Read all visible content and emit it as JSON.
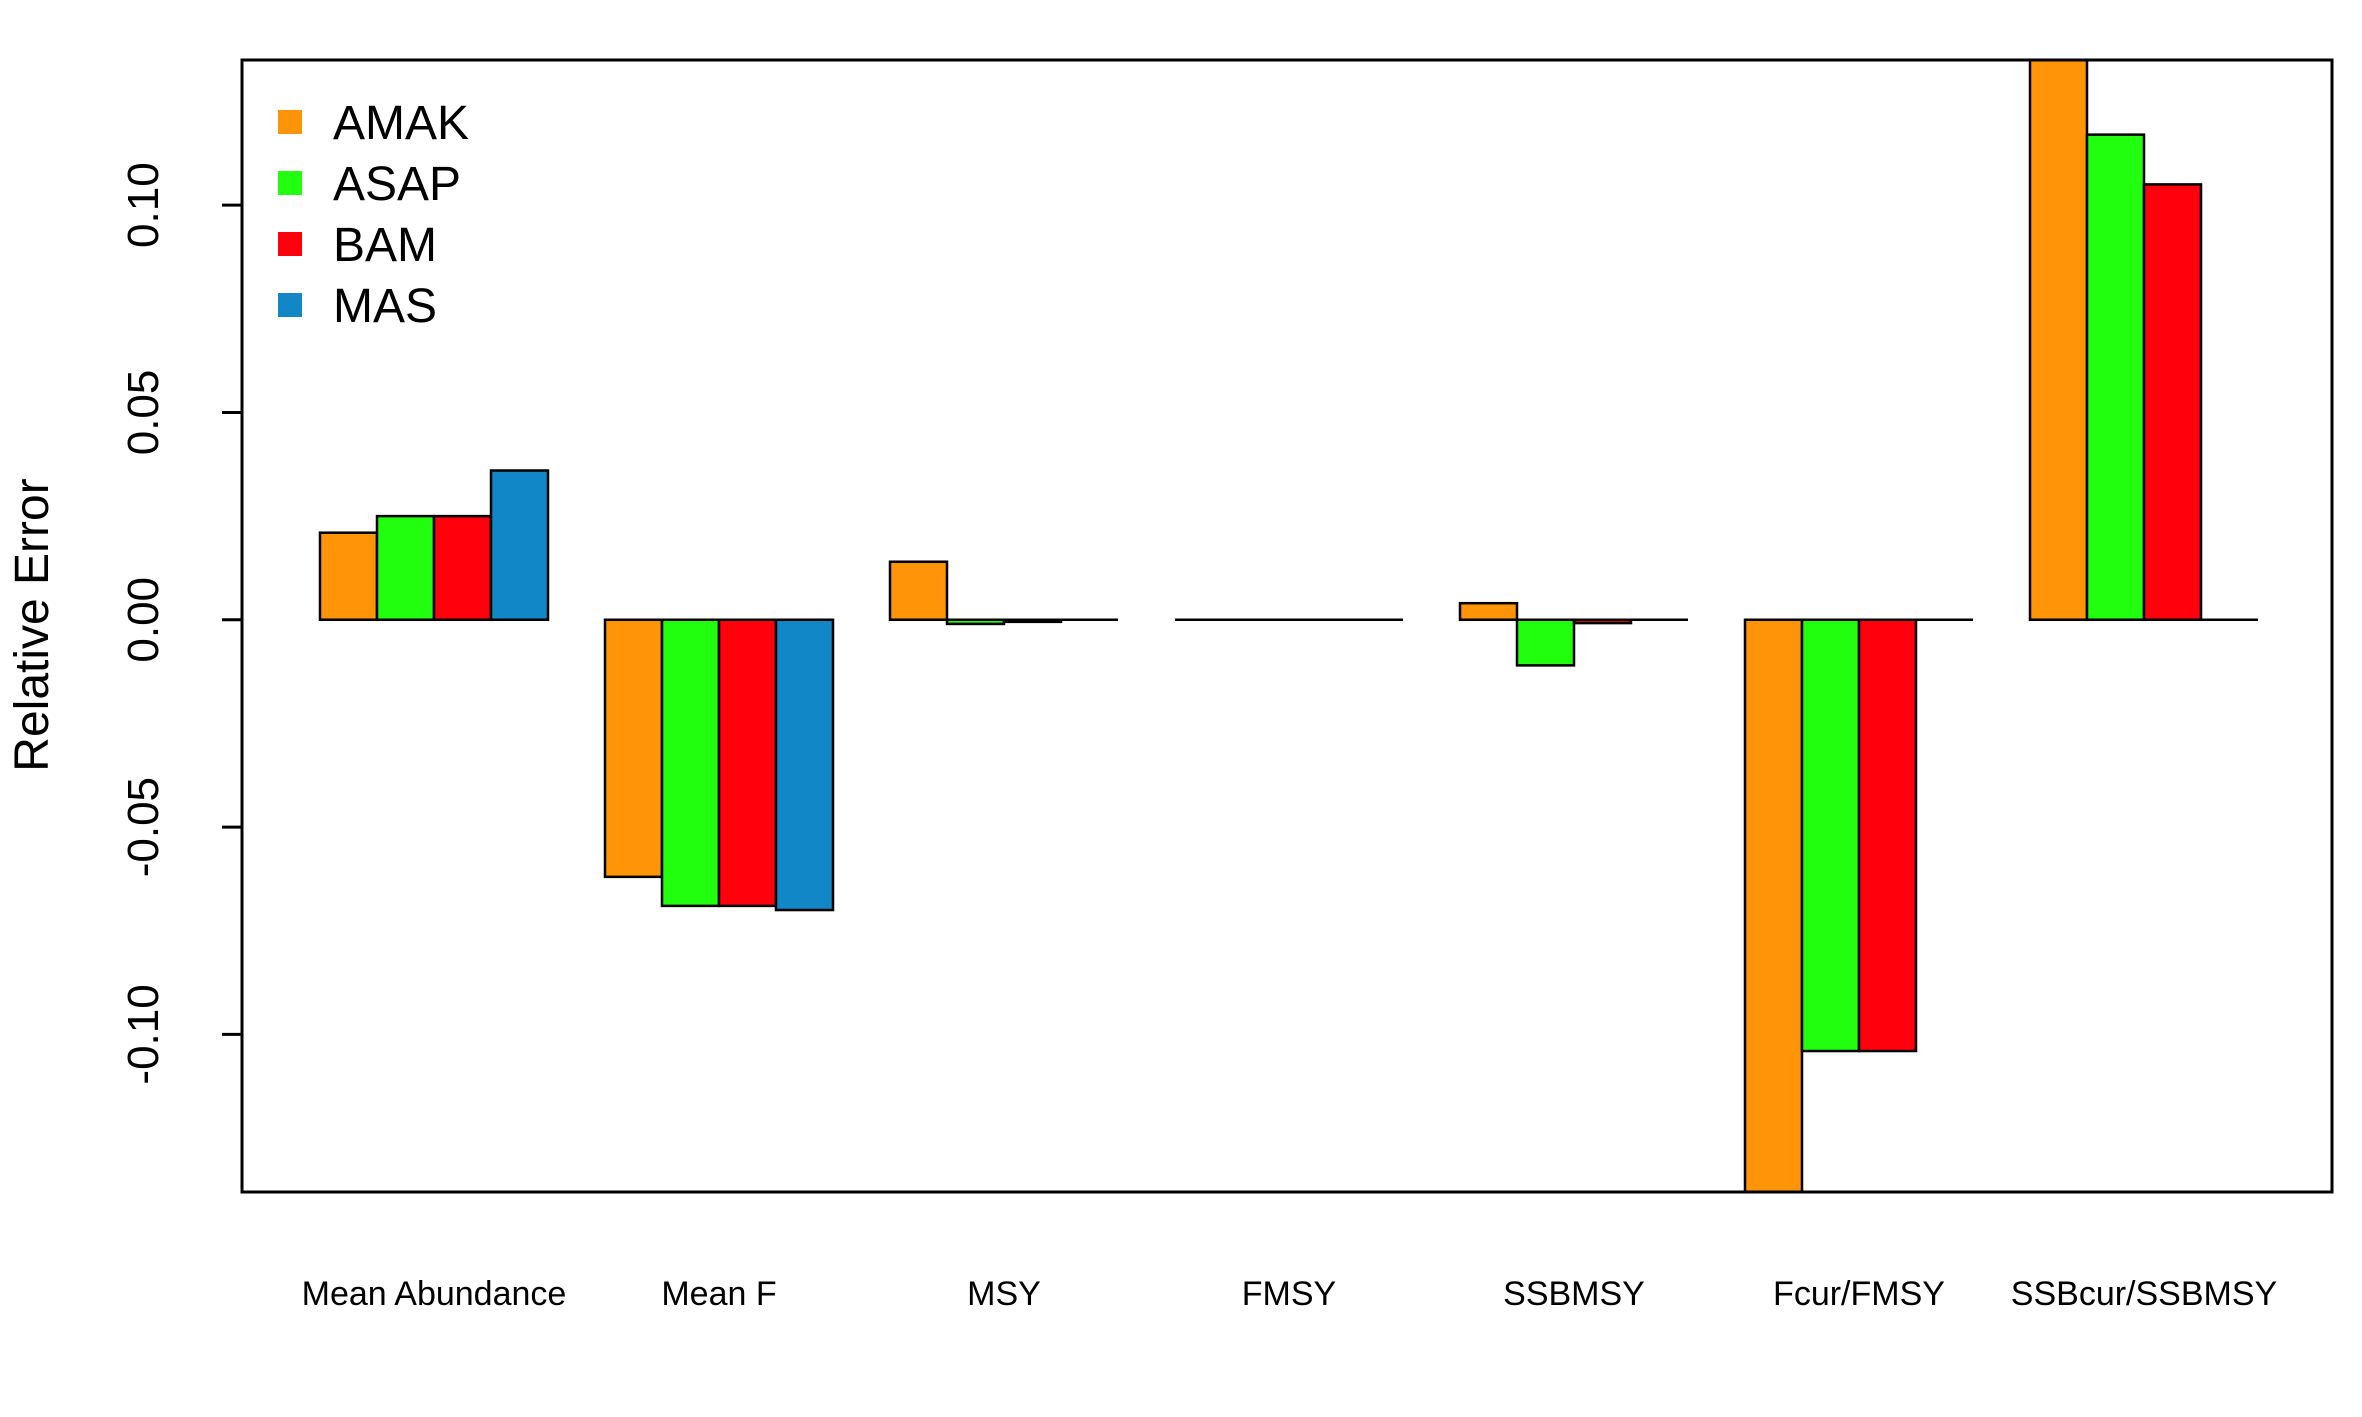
{
  "chart_data": {
    "type": "bar",
    "title": "",
    "xlabel": "",
    "ylabel": "Relative Error",
    "ylim": [
      -0.138,
      0.135
    ],
    "yticks": [
      -0.1,
      -0.05,
      0.0,
      0.05,
      0.1
    ],
    "ytick_labels": [
      "-0.10",
      "-0.05",
      "0.00",
      "0.05",
      "0.10"
    ],
    "grid": false,
    "legend_position": "top-left",
    "categories": [
      "Mean Abundance",
      "Mean F",
      "MSY",
      "FMSY",
      "SSBMSY",
      "Fcur/FMSY",
      "SSBcur/SSBMSY"
    ],
    "series": [
      {
        "name": "AMAK",
        "color": "#FF9408",
        "values": [
          0.021,
          -0.062,
          0.014,
          0.0,
          0.004,
          -0.14,
          0.14
        ]
      },
      {
        "name": "ASAP",
        "color": "#22FF0E",
        "values": [
          0.025,
          -0.069,
          -0.001,
          0.0,
          -0.011,
          -0.104,
          0.117
        ]
      },
      {
        "name": "BAM",
        "color": "#FF000C",
        "values": [
          0.025,
          -0.069,
          -0.0005,
          0.0,
          -0.0008,
          -0.104,
          0.105
        ]
      },
      {
        "name": "MAS",
        "color": "#1287C7",
        "values": [
          0.036,
          -0.07,
          0.0,
          0.0,
          0.0,
          0.0,
          0.0
        ]
      }
    ]
  }
}
